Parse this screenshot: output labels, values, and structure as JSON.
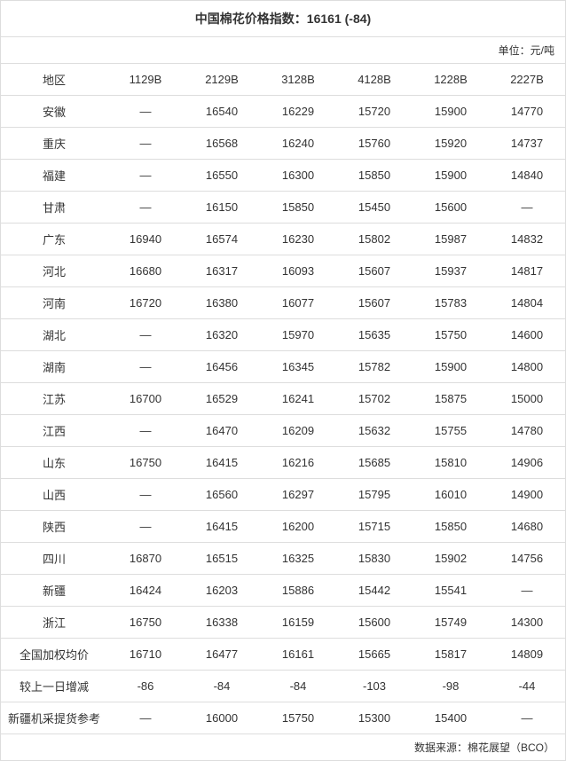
{
  "title": "中国棉花价格指数：16161 (-84)",
  "unit_label": "单位：元/吨",
  "columns": [
    "地区",
    "1129B",
    "2129B",
    "3128B",
    "4128B",
    "1228B",
    "2227B"
  ],
  "rows": [
    {
      "region": "安徽",
      "values": [
        "—",
        "16540",
        "16229",
        "15720",
        "15900",
        "14770"
      ]
    },
    {
      "region": "重庆",
      "values": [
        "—",
        "16568",
        "16240",
        "15760",
        "15920",
        "14737"
      ]
    },
    {
      "region": "福建",
      "values": [
        "—",
        "16550",
        "16300",
        "15850",
        "15900",
        "14840"
      ]
    },
    {
      "region": "甘肃",
      "values": [
        "—",
        "16150",
        "15850",
        "15450",
        "15600",
        "—"
      ]
    },
    {
      "region": "广东",
      "values": [
        "16940",
        "16574",
        "16230",
        "15802",
        "15987",
        "14832"
      ]
    },
    {
      "region": "河北",
      "values": [
        "16680",
        "16317",
        "16093",
        "15607",
        "15937",
        "14817"
      ]
    },
    {
      "region": "河南",
      "values": [
        "16720",
        "16380",
        "16077",
        "15607",
        "15783",
        "14804"
      ]
    },
    {
      "region": "湖北",
      "values": [
        "—",
        "16320",
        "15970",
        "15635",
        "15750",
        "14600"
      ]
    },
    {
      "region": "湖南",
      "values": [
        "—",
        "16456",
        "16345",
        "15782",
        "15900",
        "14800"
      ]
    },
    {
      "region": "江苏",
      "values": [
        "16700",
        "16529",
        "16241",
        "15702",
        "15875",
        "15000"
      ]
    },
    {
      "region": "江西",
      "values": [
        "—",
        "16470",
        "16209",
        "15632",
        "15755",
        "14780"
      ]
    },
    {
      "region": "山东",
      "values": [
        "16750",
        "16415",
        "16216",
        "15685",
        "15810",
        "14906"
      ]
    },
    {
      "region": "山西",
      "values": [
        "—",
        "16560",
        "16297",
        "15795",
        "16010",
        "14900"
      ]
    },
    {
      "region": "陕西",
      "values": [
        "—",
        "16415",
        "16200",
        "15715",
        "15850",
        "14680"
      ]
    },
    {
      "region": "四川",
      "values": [
        "16870",
        "16515",
        "16325",
        "15830",
        "15902",
        "14756"
      ]
    },
    {
      "region": "新疆",
      "values": [
        "16424",
        "16203",
        "15886",
        "15442",
        "15541",
        "—"
      ]
    },
    {
      "region": "浙江",
      "values": [
        "16750",
        "16338",
        "16159",
        "15600",
        "15749",
        "14300"
      ]
    },
    {
      "region": "全国加权均价",
      "values": [
        "16710",
        "16477",
        "16161",
        "15665",
        "15817",
        "14809"
      ]
    },
    {
      "region": "较上一日增减",
      "values": [
        "-86",
        "-84",
        "-84",
        "-103",
        "-98",
        "-44"
      ]
    },
    {
      "region": "新疆机采提货参考",
      "values": [
        "—",
        "16000",
        "15750",
        "15300",
        "15400",
        "—"
      ]
    }
  ],
  "source_label": "数据来源：棉花展望（BCO）"
}
